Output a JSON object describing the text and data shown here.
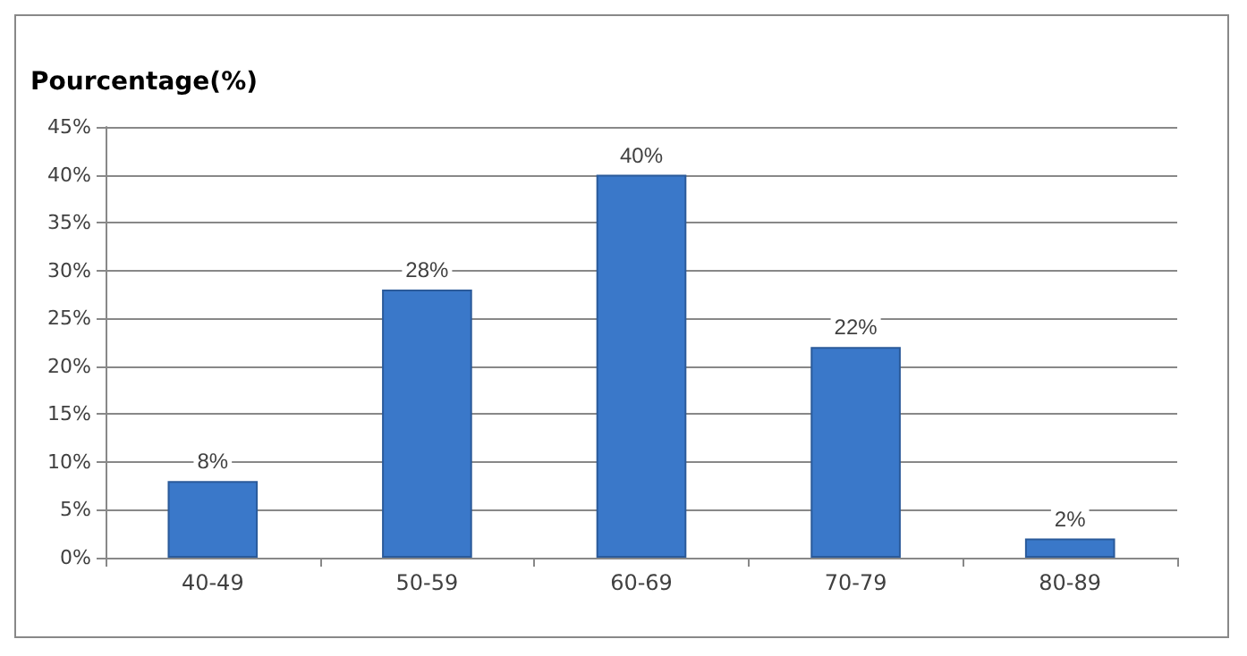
{
  "chart_data": {
    "type": "bar",
    "ylabel": "Pourcentage(%)",
    "categories": [
      "40-49",
      "50-59",
      "60-69",
      "70-79",
      "80-89"
    ],
    "values": [
      8,
      28,
      40,
      22,
      2
    ],
    "value_labels": [
      "8%",
      "28%",
      "40%",
      "22%",
      "2%"
    ],
    "color": "#3a78c9",
    "ylim": [
      0,
      45
    ],
    "yticks": [
      {
        "value": 0,
        "label": "0%"
      },
      {
        "value": 5,
        "label": "5%"
      },
      {
        "value": 10,
        "label": "10%"
      },
      {
        "value": 15,
        "label": "15%"
      },
      {
        "value": 20,
        "label": "20%"
      },
      {
        "value": 25,
        "label": "25%"
      },
      {
        "value": 30,
        "label": "30%"
      },
      {
        "value": 35,
        "label": "35%"
      },
      {
        "value": 40,
        "label": "40%"
      },
      {
        "value": 45,
        "label": "45%"
      }
    ],
    "grid": "y"
  }
}
